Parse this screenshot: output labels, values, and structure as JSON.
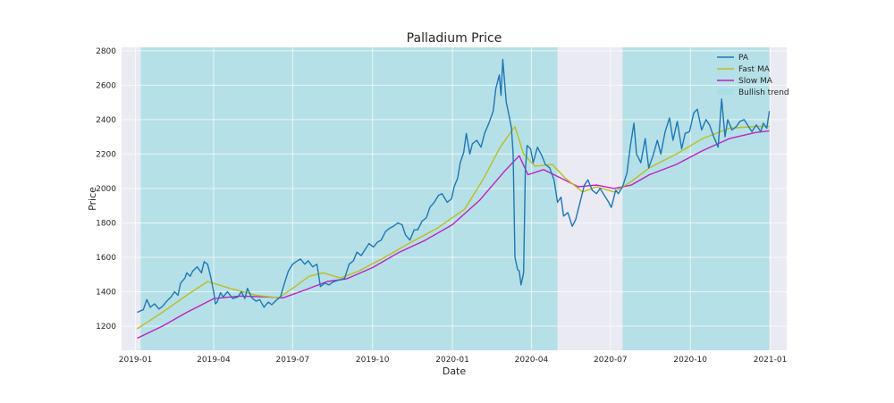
{
  "chart_data": {
    "type": "line",
    "title": "Palladium Price",
    "xlabel": "Date",
    "ylabel": "Price",
    "xlim": [
      "2018-12-16",
      "2021-01-20"
    ],
    "ylim": [
      1060,
      2820
    ],
    "x_ticks": [
      "2019-01",
      "2019-04",
      "2019-07",
      "2019-10",
      "2020-01",
      "2020-04",
      "2020-07",
      "2020-10",
      "2021-01"
    ],
    "y_ticks": [
      1200,
      1400,
      1600,
      1800,
      2000,
      2200,
      2400,
      2600,
      2800
    ],
    "grid": true,
    "legend_position": "top-right",
    "colors": {
      "PA": "#1f77b4",
      "Fast MA": "#bcbd22",
      "Slow MA": "#c020c0",
      "Bullish trend": "#a8dde3",
      "plot_background": "#eaeaf2",
      "grid": "#ffffff"
    },
    "bullish_trend_spans": [
      [
        "2019-01-07",
        "2020-05-01"
      ],
      [
        "2020-07-15",
        "2020-12-31"
      ]
    ],
    "series": [
      {
        "name": "PA",
        "points": [
          [
            "2019-01-03",
            1280
          ],
          [
            "2019-01-07",
            1290
          ],
          [
            "2019-01-10",
            1295
          ],
          [
            "2019-01-14",
            1355
          ],
          [
            "2019-01-18",
            1310
          ],
          [
            "2019-01-23",
            1330
          ],
          [
            "2019-01-28",
            1300
          ],
          [
            "2019-02-01",
            1315
          ],
          [
            "2019-02-06",
            1345
          ],
          [
            "2019-02-11",
            1370
          ],
          [
            "2019-02-15",
            1400
          ],
          [
            "2019-02-19",
            1380
          ],
          [
            "2019-02-22",
            1450
          ],
          [
            "2019-02-27",
            1480
          ],
          [
            "2019-03-01",
            1510
          ],
          [
            "2019-03-05",
            1490
          ],
          [
            "2019-03-08",
            1520
          ],
          [
            "2019-03-13",
            1545
          ],
          [
            "2019-03-18",
            1510
          ],
          [
            "2019-03-21",
            1575
          ],
          [
            "2019-03-25",
            1560
          ],
          [
            "2019-03-29",
            1480
          ],
          [
            "2019-04-01",
            1400
          ],
          [
            "2019-04-03",
            1330
          ],
          [
            "2019-04-05",
            1340
          ],
          [
            "2019-04-09",
            1395
          ],
          [
            "2019-04-12",
            1370
          ],
          [
            "2019-04-17",
            1400
          ],
          [
            "2019-04-23",
            1360
          ],
          [
            "2019-04-29",
            1370
          ],
          [
            "2019-05-03",
            1400
          ],
          [
            "2019-05-07",
            1360
          ],
          [
            "2019-05-10",
            1420
          ],
          [
            "2019-05-15",
            1365
          ],
          [
            "2019-05-20",
            1345
          ],
          [
            "2019-05-24",
            1355
          ],
          [
            "2019-05-29",
            1310
          ],
          [
            "2019-06-03",
            1340
          ],
          [
            "2019-06-07",
            1325
          ],
          [
            "2019-06-12",
            1350
          ],
          [
            "2019-06-17",
            1370
          ],
          [
            "2019-06-21",
            1440
          ],
          [
            "2019-06-26",
            1520
          ],
          [
            "2019-07-01",
            1560
          ],
          [
            "2019-07-05",
            1575
          ],
          [
            "2019-07-10",
            1590
          ],
          [
            "2019-07-15",
            1560
          ],
          [
            "2019-07-19",
            1580
          ],
          [
            "2019-07-24",
            1545
          ],
          [
            "2019-07-29",
            1560
          ],
          [
            "2019-08-02",
            1430
          ],
          [
            "2019-08-07",
            1450
          ],
          [
            "2019-08-12",
            1440
          ],
          [
            "2019-08-16",
            1455
          ],
          [
            "2019-08-21",
            1465
          ],
          [
            "2019-08-26",
            1470
          ],
          [
            "2019-08-30",
            1480
          ],
          [
            "2019-09-04",
            1560
          ],
          [
            "2019-09-09",
            1580
          ],
          [
            "2019-09-13",
            1630
          ],
          [
            "2019-09-18",
            1610
          ],
          [
            "2019-09-23",
            1650
          ],
          [
            "2019-09-27",
            1680
          ],
          [
            "2019-10-02",
            1660
          ],
          [
            "2019-10-07",
            1690
          ],
          [
            "2019-10-11",
            1700
          ],
          [
            "2019-10-16",
            1750
          ],
          [
            "2019-10-21",
            1770
          ],
          [
            "2019-10-25",
            1780
          ],
          [
            "2019-10-30",
            1800
          ],
          [
            "2019-11-04",
            1790
          ],
          [
            "2019-11-08",
            1730
          ],
          [
            "2019-11-13",
            1700
          ],
          [
            "2019-11-18",
            1760
          ],
          [
            "2019-11-22",
            1760
          ],
          [
            "2019-11-27",
            1810
          ],
          [
            "2019-12-02",
            1830
          ],
          [
            "2019-12-06",
            1890
          ],
          [
            "2019-12-11",
            1920
          ],
          [
            "2019-12-16",
            1960
          ],
          [
            "2019-12-20",
            1970
          ],
          [
            "2019-12-26",
            1920
          ],
          [
            "2019-12-31",
            1940
          ],
          [
            "2020-01-03",
            2010
          ],
          [
            "2020-01-07",
            2060
          ],
          [
            "2020-01-10",
            2150
          ],
          [
            "2020-01-14",
            2210
          ],
          [
            "2020-01-17",
            2320
          ],
          [
            "2020-01-21",
            2200
          ],
          [
            "2020-01-24",
            2260
          ],
          [
            "2020-01-29",
            2280
          ],
          [
            "2020-02-03",
            2240
          ],
          [
            "2020-02-07",
            2320
          ],
          [
            "2020-02-12",
            2380
          ],
          [
            "2020-02-17",
            2450
          ],
          [
            "2020-02-20",
            2580
          ],
          [
            "2020-02-24",
            2660
          ],
          [
            "2020-02-26",
            2540
          ],
          [
            "2020-02-28",
            2750
          ],
          [
            "2020-03-03",
            2500
          ],
          [
            "2020-03-06",
            2430
          ],
          [
            "2020-03-09",
            2350
          ],
          [
            "2020-03-11",
            2200
          ],
          [
            "2020-03-13",
            1600
          ],
          [
            "2020-03-16",
            1530
          ],
          [
            "2020-03-18",
            1520
          ],
          [
            "2020-03-20",
            1440
          ],
          [
            "2020-03-23",
            1510
          ],
          [
            "2020-03-25",
            2100
          ],
          [
            "2020-03-27",
            2250
          ],
          [
            "2020-03-31",
            2230
          ],
          [
            "2020-04-03",
            2150
          ],
          [
            "2020-04-08",
            2240
          ],
          [
            "2020-04-13",
            2190
          ],
          [
            "2020-04-17",
            2140
          ],
          [
            "2020-04-22",
            2120
          ],
          [
            "2020-04-27",
            2050
          ],
          [
            "2020-05-01",
            1920
          ],
          [
            "2020-05-05",
            1950
          ],
          [
            "2020-05-08",
            1840
          ],
          [
            "2020-05-13",
            1860
          ],
          [
            "2020-05-18",
            1780
          ],
          [
            "2020-05-22",
            1820
          ],
          [
            "2020-05-27",
            1920
          ],
          [
            "2020-06-01",
            2020
          ],
          [
            "2020-06-05",
            2050
          ],
          [
            "2020-06-10",
            1990
          ],
          [
            "2020-06-15",
            1970
          ],
          [
            "2020-06-19",
            2000
          ],
          [
            "2020-06-24",
            1960
          ],
          [
            "2020-06-29",
            1920
          ],
          [
            "2020-07-02",
            1890
          ],
          [
            "2020-07-07",
            1990
          ],
          [
            "2020-07-10",
            1970
          ],
          [
            "2020-07-15",
            2010
          ],
          [
            "2020-07-20",
            2090
          ],
          [
            "2020-07-24",
            2250
          ],
          [
            "2020-07-28",
            2380
          ],
          [
            "2020-07-31",
            2200
          ],
          [
            "2020-08-05",
            2150
          ],
          [
            "2020-08-10",
            2290
          ],
          [
            "2020-08-14",
            2120
          ],
          [
            "2020-08-19",
            2190
          ],
          [
            "2020-08-24",
            2280
          ],
          [
            "2020-08-28",
            2200
          ],
          [
            "2020-09-02",
            2330
          ],
          [
            "2020-09-07",
            2410
          ],
          [
            "2020-09-11",
            2280
          ],
          [
            "2020-09-16",
            2390
          ],
          [
            "2020-09-21",
            2230
          ],
          [
            "2020-09-25",
            2320
          ],
          [
            "2020-09-30",
            2330
          ],
          [
            "2020-10-05",
            2440
          ],
          [
            "2020-10-09",
            2460
          ],
          [
            "2020-10-14",
            2340
          ],
          [
            "2020-10-19",
            2400
          ],
          [
            "2020-10-23",
            2370
          ],
          [
            "2020-10-28",
            2300
          ],
          [
            "2020-11-02",
            2240
          ],
          [
            "2020-11-06",
            2520
          ],
          [
            "2020-11-10",
            2300
          ],
          [
            "2020-11-13",
            2400
          ],
          [
            "2020-11-18",
            2340
          ],
          [
            "2020-11-23",
            2360
          ],
          [
            "2020-11-27",
            2390
          ],
          [
            "2020-12-02",
            2400
          ],
          [
            "2020-12-07",
            2360
          ],
          [
            "2020-12-11",
            2330
          ],
          [
            "2020-12-16",
            2370
          ],
          [
            "2020-12-21",
            2330
          ],
          [
            "2020-12-24",
            2380
          ],
          [
            "2020-12-28",
            2350
          ],
          [
            "2020-12-31",
            2450
          ]
        ]
      },
      {
        "name": "Fast MA",
        "points": [
          [
            "2019-01-03",
            1185
          ],
          [
            "2019-02-01",
            1280
          ],
          [
            "2019-03-01",
            1380
          ],
          [
            "2019-03-25",
            1460
          ],
          [
            "2019-04-20",
            1420
          ],
          [
            "2019-05-20",
            1380
          ],
          [
            "2019-06-15",
            1365
          ],
          [
            "2019-07-01",
            1420
          ],
          [
            "2019-07-20",
            1490
          ],
          [
            "2019-08-05",
            1510
          ],
          [
            "2019-08-25",
            1480
          ],
          [
            "2019-09-15",
            1520
          ],
          [
            "2019-10-15",
            1600
          ],
          [
            "2019-11-15",
            1690
          ],
          [
            "2019-12-15",
            1770
          ],
          [
            "2020-01-15",
            1880
          ],
          [
            "2020-02-05",
            2050
          ],
          [
            "2020-02-25",
            2240
          ],
          [
            "2020-03-13",
            2360
          ],
          [
            "2020-03-23",
            2200
          ],
          [
            "2020-04-05",
            2130
          ],
          [
            "2020-04-25",
            2140
          ],
          [
            "2020-05-10",
            2060
          ],
          [
            "2020-05-30",
            1980
          ],
          [
            "2020-06-15",
            2010
          ],
          [
            "2020-07-05",
            1980
          ],
          [
            "2020-07-25",
            2040
          ],
          [
            "2020-08-15",
            2120
          ],
          [
            "2020-09-15",
            2200
          ],
          [
            "2020-10-15",
            2290
          ],
          [
            "2020-11-15",
            2350
          ],
          [
            "2020-12-15",
            2360
          ],
          [
            "2020-12-31",
            2360
          ]
        ]
      },
      {
        "name": "Slow MA",
        "points": [
          [
            "2019-01-03",
            1130
          ],
          [
            "2019-02-01",
            1200
          ],
          [
            "2019-03-01",
            1280
          ],
          [
            "2019-04-01",
            1360
          ],
          [
            "2019-05-01",
            1375
          ],
          [
            "2019-06-01",
            1370
          ],
          [
            "2019-06-20",
            1365
          ],
          [
            "2019-07-15",
            1410
          ],
          [
            "2019-08-10",
            1460
          ],
          [
            "2019-09-01",
            1475
          ],
          [
            "2019-10-01",
            1540
          ],
          [
            "2019-11-01",
            1630
          ],
          [
            "2019-12-01",
            1700
          ],
          [
            "2020-01-01",
            1790
          ],
          [
            "2020-02-01",
            1930
          ],
          [
            "2020-03-01",
            2100
          ],
          [
            "2020-03-18",
            2190
          ],
          [
            "2020-03-28",
            2080
          ],
          [
            "2020-04-15",
            2110
          ],
          [
            "2020-05-05",
            2060
          ],
          [
            "2020-05-25",
            2010
          ],
          [
            "2020-06-15",
            2020
          ],
          [
            "2020-07-05",
            2000
          ],
          [
            "2020-07-25",
            2020
          ],
          [
            "2020-08-15",
            2080
          ],
          [
            "2020-09-15",
            2140
          ],
          [
            "2020-10-15",
            2220
          ],
          [
            "2020-11-15",
            2290
          ],
          [
            "2020-12-15",
            2325
          ],
          [
            "2020-12-31",
            2335
          ]
        ]
      }
    ],
    "legend": [
      "PA",
      "Fast MA",
      "Slow MA",
      "Bullish trend"
    ]
  }
}
